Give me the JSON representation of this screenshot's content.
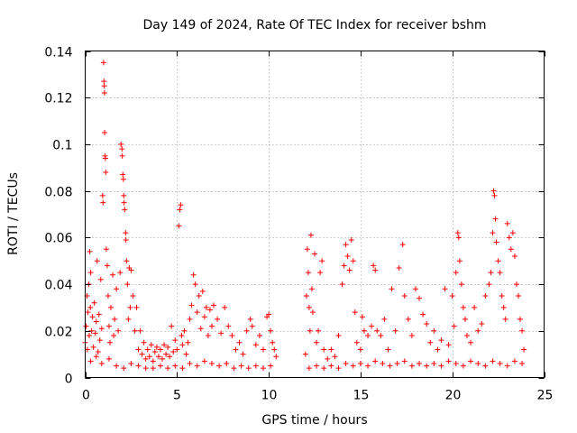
{
  "chart_data": {
    "type": "scatter",
    "title": "Day 149 of 2024, Rate Of TEC Index for receiver bshm",
    "xlabel": "GPS time / hours",
    "ylabel": "ROTI / TECUs",
    "xlim": [
      0,
      25
    ],
    "ylim": [
      0,
      0.14
    ],
    "xticks": [
      0,
      5,
      10,
      15,
      20,
      25
    ],
    "xtick_labels": [
      "0",
      "5",
      "10",
      "15",
      "20",
      "25"
    ],
    "yticks": [
      0,
      0.02,
      0.04,
      0.06,
      0.08,
      0.1,
      0.12,
      0.14
    ],
    "ytick_labels": [
      "0",
      "0.02",
      "0.04",
      "0.06",
      "0.08",
      "0.1",
      "0.12",
      "0.14"
    ],
    "grid": true,
    "marker": "plus",
    "color": "#ff0000",
    "series": [
      {
        "points": [
          [
            0.0,
            0.015
          ],
          [
            0.05,
            0.022
          ],
          [
            0.1,
            0.035
          ],
          [
            0.12,
            0.012
          ],
          [
            0.15,
            0.028
          ],
          [
            0.2,
            0.04
          ],
          [
            0.22,
            0.018
          ],
          [
            0.25,
            0.054
          ],
          [
            0.28,
            0.03
          ],
          [
            0.3,
            0.045
          ],
          [
            0.35,
            0.02
          ],
          [
            0.4,
            0.026
          ],
          [
            0.45,
            0.013
          ],
          [
            0.5,
            0.032
          ],
          [
            0.55,
            0.019
          ],
          [
            0.6,
            0.024
          ],
          [
            0.65,
            0.05
          ],
          [
            0.7,
            0.011
          ],
          [
            0.75,
            0.027
          ],
          [
            0.8,
            0.016
          ],
          [
            0.85,
            0.042
          ],
          [
            0.9,
            0.021
          ],
          [
            0.95,
            0.078
          ],
          [
            0.97,
            0.075
          ],
          [
            1.0,
            0.135
          ],
          [
            1.02,
            0.127
          ],
          [
            1.04,
            0.125
          ],
          [
            1.05,
            0.122
          ],
          [
            1.06,
            0.105
          ],
          [
            1.08,
            0.095
          ],
          [
            1.1,
            0.094
          ],
          [
            1.12,
            0.088
          ],
          [
            1.15,
            0.055
          ],
          [
            1.2,
            0.048
          ],
          [
            1.25,
            0.035
          ],
          [
            1.3,
            0.022
          ],
          [
            1.35,
            0.015
          ],
          [
            1.4,
            0.03
          ],
          [
            1.5,
            0.044
          ],
          [
            1.55,
            0.018
          ],
          [
            1.6,
            0.025
          ],
          [
            1.7,
            0.038
          ],
          [
            1.8,
            0.02
          ],
          [
            1.9,
            0.045
          ],
          [
            1.95,
            0.1
          ],
          [
            2.0,
            0.098
          ],
          [
            2.02,
            0.095
          ],
          [
            2.05,
            0.087
          ],
          [
            2.08,
            0.085
          ],
          [
            2.1,
            0.078
          ],
          [
            2.12,
            0.075
          ],
          [
            2.15,
            0.072
          ],
          [
            2.2,
            0.062
          ],
          [
            2.22,
            0.059
          ],
          [
            2.25,
            0.05
          ],
          [
            2.3,
            0.04
          ],
          [
            2.35,
            0.025
          ],
          [
            2.4,
            0.047
          ],
          [
            2.45,
            0.03
          ],
          [
            2.5,
            0.046
          ],
          [
            2.6,
            0.035
          ],
          [
            2.7,
            0.02
          ],
          [
            2.8,
            0.03
          ],
          [
            2.9,
            0.012
          ],
          [
            3.0,
            0.02
          ],
          [
            3.1,
            0.01
          ],
          [
            3.2,
            0.015
          ],
          [
            3.3,
            0.008
          ],
          [
            3.4,
            0.012
          ],
          [
            3.5,
            0.009
          ],
          [
            3.6,
            0.014
          ],
          [
            3.7,
            0.007
          ],
          [
            3.8,
            0.011
          ],
          [
            3.9,
            0.013
          ],
          [
            4.0,
            0.009
          ],
          [
            4.1,
            0.012
          ],
          [
            4.2,
            0.008
          ],
          [
            4.3,
            0.014
          ],
          [
            4.4,
            0.01
          ],
          [
            4.5,
            0.013
          ],
          [
            4.6,
            0.009
          ],
          [
            4.7,
            0.022
          ],
          [
            4.8,
            0.011
          ],
          [
            4.9,
            0.016
          ],
          [
            5.0,
            0.012
          ],
          [
            5.1,
            0.065
          ],
          [
            5.15,
            0.072
          ],
          [
            5.2,
            0.074
          ],
          [
            5.25,
            0.018
          ],
          [
            5.3,
            0.014
          ],
          [
            5.4,
            0.02
          ],
          [
            5.5,
            0.01
          ],
          [
            5.6,
            0.015
          ],
          [
            5.7,
            0.025
          ],
          [
            5.8,
            0.031
          ],
          [
            5.9,
            0.044
          ],
          [
            6.0,
            0.04
          ],
          [
            6.1,
            0.028
          ],
          [
            6.2,
            0.035
          ],
          [
            6.3,
            0.021
          ],
          [
            6.4,
            0.037
          ],
          [
            6.5,
            0.026
          ],
          [
            6.6,
            0.03
          ],
          [
            6.7,
            0.018
          ],
          [
            6.8,
            0.029
          ],
          [
            6.9,
            0.022
          ],
          [
            7.0,
            0.031
          ],
          [
            7.2,
            0.025
          ],
          [
            7.4,
            0.019
          ],
          [
            7.6,
            0.03
          ],
          [
            7.8,
            0.022
          ],
          [
            8.0,
            0.018
          ],
          [
            8.2,
            0.012
          ],
          [
            8.4,
            0.015
          ],
          [
            8.6,
            0.01
          ],
          [
            8.8,
            0.02
          ],
          [
            9.0,
            0.025
          ],
          [
            9.1,
            0.022
          ],
          [
            9.3,
            0.014
          ],
          [
            9.5,
            0.018
          ],
          [
            9.7,
            0.012
          ],
          [
            9.9,
            0.026
          ],
          [
            10.0,
            0.027
          ],
          [
            10.1,
            0.02
          ],
          [
            10.2,
            0.015
          ],
          [
            10.3,
            0.012
          ],
          [
            10.4,
            0.009
          ],
          [
            12.0,
            0.01
          ],
          [
            12.05,
            0.035
          ],
          [
            12.1,
            0.055
          ],
          [
            12.15,
            0.045
          ],
          [
            12.2,
            0.03
          ],
          [
            12.25,
            0.02
          ],
          [
            12.3,
            0.061
          ],
          [
            12.35,
            0.038
          ],
          [
            12.4,
            0.028
          ],
          [
            12.5,
            0.053
          ],
          [
            12.6,
            0.015
          ],
          [
            12.7,
            0.02
          ],
          [
            12.8,
            0.045
          ],
          [
            12.9,
            0.05
          ],
          [
            13.0,
            0.012
          ],
          [
            13.2,
            0.008
          ],
          [
            13.4,
            0.012
          ],
          [
            13.6,
            0.009
          ],
          [
            13.8,
            0.018
          ],
          [
            14.0,
            0.04
          ],
          [
            14.1,
            0.048
          ],
          [
            14.2,
            0.057
          ],
          [
            14.3,
            0.052
          ],
          [
            14.4,
            0.046
          ],
          [
            14.5,
            0.059
          ],
          [
            14.6,
            0.05
          ],
          [
            14.7,
            0.028
          ],
          [
            14.8,
            0.015
          ],
          [
            15.0,
            0.012
          ],
          [
            15.1,
            0.026
          ],
          [
            15.2,
            0.02
          ],
          [
            15.4,
            0.018
          ],
          [
            15.6,
            0.022
          ],
          [
            15.7,
            0.048
          ],
          [
            15.8,
            0.046
          ],
          [
            15.9,
            0.02
          ],
          [
            16.1,
            0.018
          ],
          [
            16.3,
            0.025
          ],
          [
            16.5,
            0.012
          ],
          [
            16.7,
            0.038
          ],
          [
            16.9,
            0.02
          ],
          [
            17.1,
            0.047
          ],
          [
            17.3,
            0.057
          ],
          [
            17.4,
            0.035
          ],
          [
            17.6,
            0.025
          ],
          [
            17.8,
            0.018
          ],
          [
            18.0,
            0.038
          ],
          [
            18.2,
            0.034
          ],
          [
            18.4,
            0.027
          ],
          [
            18.6,
            0.023
          ],
          [
            18.8,
            0.015
          ],
          [
            19.0,
            0.02
          ],
          [
            19.2,
            0.012
          ],
          [
            19.4,
            0.016
          ],
          [
            19.6,
            0.038
          ],
          [
            19.8,
            0.014
          ],
          [
            20.0,
            0.035
          ],
          [
            20.1,
            0.022
          ],
          [
            20.2,
            0.045
          ],
          [
            20.3,
            0.062
          ],
          [
            20.35,
            0.06
          ],
          [
            20.4,
            0.05
          ],
          [
            20.5,
            0.04
          ],
          [
            20.6,
            0.03
          ],
          [
            20.7,
            0.025
          ],
          [
            20.8,
            0.018
          ],
          [
            21.0,
            0.015
          ],
          [
            21.2,
            0.03
          ],
          [
            21.4,
            0.02
          ],
          [
            21.6,
            0.023
          ],
          [
            21.8,
            0.035
          ],
          [
            22.0,
            0.04
          ],
          [
            22.1,
            0.045
          ],
          [
            22.2,
            0.062
          ],
          [
            22.25,
            0.08
          ],
          [
            22.3,
            0.078
          ],
          [
            22.35,
            0.068
          ],
          [
            22.4,
            0.058
          ],
          [
            22.5,
            0.05
          ],
          [
            22.6,
            0.045
          ],
          [
            22.7,
            0.035
          ],
          [
            22.8,
            0.03
          ],
          [
            22.9,
            0.025
          ],
          [
            23.0,
            0.066
          ],
          [
            23.1,
            0.06
          ],
          [
            23.2,
            0.055
          ],
          [
            23.3,
            0.062
          ],
          [
            23.4,
            0.052
          ],
          [
            23.5,
            0.04
          ],
          [
            23.6,
            0.035
          ],
          [
            23.7,
            0.025
          ],
          [
            23.8,
            0.02
          ],
          [
            23.9,
            0.012
          ],
          [
            0.3,
            0.007
          ],
          [
            0.6,
            0.009
          ],
          [
            0.9,
            0.006
          ],
          [
            1.3,
            0.008
          ],
          [
            1.7,
            0.005
          ],
          [
            2.1,
            0.004
          ],
          [
            2.5,
            0.006
          ],
          [
            2.9,
            0.005
          ],
          [
            3.3,
            0.004
          ],
          [
            3.7,
            0.004
          ],
          [
            4.1,
            0.005
          ],
          [
            4.5,
            0.004
          ],
          [
            4.9,
            0.005
          ],
          [
            5.3,
            0.004
          ],
          [
            5.7,
            0.006
          ],
          [
            6.1,
            0.005
          ],
          [
            6.5,
            0.007
          ],
          [
            6.9,
            0.006
          ],
          [
            7.3,
            0.005
          ],
          [
            7.7,
            0.006
          ],
          [
            8.1,
            0.004
          ],
          [
            8.5,
            0.005
          ],
          [
            8.9,
            0.004
          ],
          [
            9.3,
            0.005
          ],
          [
            9.7,
            0.004
          ],
          [
            10.1,
            0.005
          ],
          [
            12.2,
            0.004
          ],
          [
            12.6,
            0.005
          ],
          [
            13.0,
            0.004
          ],
          [
            13.4,
            0.005
          ],
          [
            13.8,
            0.004
          ],
          [
            14.2,
            0.006
          ],
          [
            14.6,
            0.005
          ],
          [
            15.0,
            0.006
          ],
          [
            15.4,
            0.005
          ],
          [
            15.8,
            0.007
          ],
          [
            16.2,
            0.006
          ],
          [
            16.6,
            0.005
          ],
          [
            17.0,
            0.006
          ],
          [
            17.4,
            0.007
          ],
          [
            17.8,
            0.005
          ],
          [
            18.2,
            0.006
          ],
          [
            18.6,
            0.005
          ],
          [
            19.0,
            0.006
          ],
          [
            19.4,
            0.005
          ],
          [
            19.8,
            0.007
          ],
          [
            20.2,
            0.006
          ],
          [
            20.6,
            0.005
          ],
          [
            21.0,
            0.007
          ],
          [
            21.4,
            0.006
          ],
          [
            21.8,
            0.005
          ],
          [
            22.2,
            0.007
          ],
          [
            22.6,
            0.006
          ],
          [
            23.0,
            0.005
          ],
          [
            23.4,
            0.007
          ],
          [
            23.8,
            0.006
          ]
        ]
      }
    ]
  }
}
